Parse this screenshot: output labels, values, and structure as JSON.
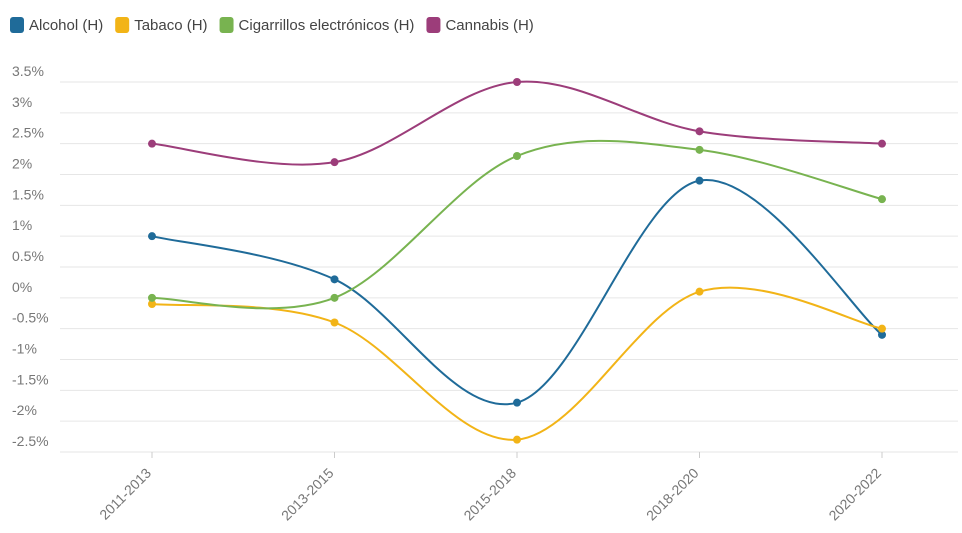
{
  "chart_data": {
    "type": "line",
    "categories": [
      "2011-2013",
      "2013-2015",
      "2015-2018",
      "2018-2020",
      "2020-2022"
    ],
    "series": [
      {
        "name": "Alcohol (H)",
        "color": "#1f6b99",
        "values": [
          1.0,
          0.3,
          -1.7,
          1.9,
          -0.6
        ]
      },
      {
        "name": "Tabaco (H)",
        "color": "#f2b417",
        "values": [
          -0.1,
          -0.4,
          -2.3,
          0.1,
          -0.5
        ]
      },
      {
        "name": "Cigarrillos electrónicos (H)",
        "color": "#78b350",
        "values": [
          0,
          0,
          2.3,
          2.4,
          1.6
        ]
      },
      {
        "name": "Cannabis (H)",
        "color": "#9c3d7a",
        "values": [
          2.5,
          2.2,
          3.5,
          2.7,
          2.5
        ]
      }
    ],
    "ylim": [
      -2.5,
      3.5
    ],
    "yticks": [
      {
        "value": 3.5,
        "label": "3.5%"
      },
      {
        "value": 3,
        "label": "3%"
      },
      {
        "value": 2.5,
        "label": "2.5%"
      },
      {
        "value": 2,
        "label": "2%"
      },
      {
        "value": 1.5,
        "label": "1.5%"
      },
      {
        "value": 1,
        "label": "1%"
      },
      {
        "value": 0.5,
        "label": "0.5%"
      },
      {
        "value": 0,
        "label": "0%"
      },
      {
        "value": -0.5,
        "label": "-0.5%"
      },
      {
        "value": -1,
        "label": "-1%"
      },
      {
        "value": -1.5,
        "label": "-1.5%"
      },
      {
        "value": -2,
        "label": "-2%"
      },
      {
        "value": -2.5,
        "label": "-2.5%"
      }
    ],
    "grid": true,
    "legend": "top-left"
  }
}
